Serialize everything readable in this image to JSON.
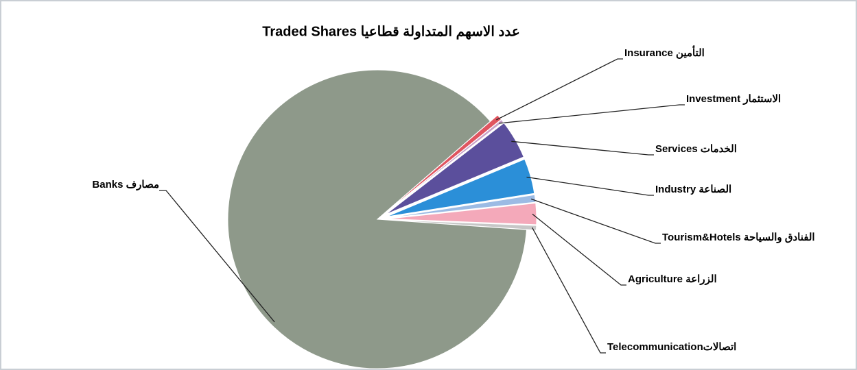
{
  "chart_data": {
    "type": "pie",
    "title": "عدد الاسهم المتداولة قطاعيا Traded Shares",
    "categories": [
      "Insurance التأمين",
      "الاستثمار Investment",
      "Services الخدمات",
      "Industry الصناعة",
      "الفنادق والسياحة Tourism&Hotels",
      "Agriculture الزراعة",
      "Telecommunicationاتصالات",
      "Banks مصارف"
    ],
    "values": [
      0.6,
      0.3,
      4.2,
      3.8,
      0.8,
      2.3,
      0.5,
      87.5
    ],
    "colors": [
      "#e05560",
      "#c8a0c8",
      "#5b4f9c",
      "#2b8fd8",
      "#9cbbe4",
      "#f4a9ba",
      "#c7c7c7",
      "#8e998a"
    ]
  }
}
